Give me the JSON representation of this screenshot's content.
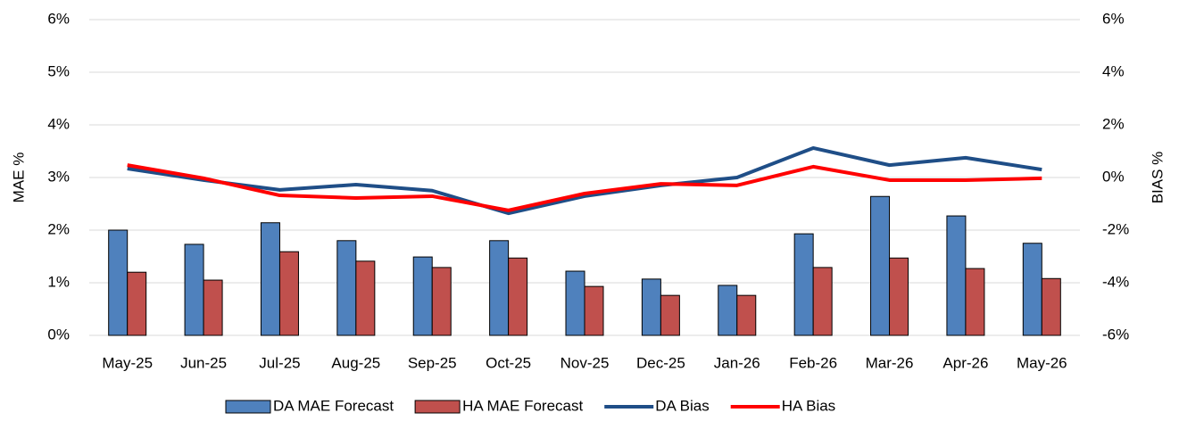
{
  "chart_data": {
    "type": "bar",
    "categories": [
      "May-25",
      "Jun-25",
      "Jul-25",
      "Aug-25",
      "Sep-25",
      "Oct-25",
      "Nov-25",
      "Dec-25",
      "Jan-26",
      "Feb-26",
      "Mar-26",
      "Apr-26",
      "May-26"
    ],
    "y_label": "MAE %",
    "y2_label": "BIAS %",
    "ylim": [
      0,
      6
    ],
    "yticks": [
      {
        "value": 0,
        "label": "0%"
      },
      {
        "value": 1,
        "label": "1%"
      },
      {
        "value": 2,
        "label": "2%"
      },
      {
        "value": 3,
        "label": "3%"
      },
      {
        "value": 4,
        "label": "4%"
      },
      {
        "value": 5,
        "label": "5%"
      },
      {
        "value": 6,
        "label": "6%"
      }
    ],
    "y2lim": [
      -6,
      6
    ],
    "y2ticks": [
      {
        "value": -6,
        "label": "-6%"
      },
      {
        "value": -4,
        "label": "-4%"
      },
      {
        "value": -2,
        "label": "-2%"
      },
      {
        "value": 0,
        "label": "0%"
      },
      {
        "value": 2,
        "label": "2%"
      },
      {
        "value": 4,
        "label": "4%"
      },
      {
        "value": 6,
        "label": "6%"
      }
    ],
    "grid": true,
    "legend": "bottom",
    "series": [
      {
        "name": "DA MAE Forecast",
        "type": "bar",
        "color": "#4f81bd",
        "values": [
          2.0,
          1.73,
          2.14,
          1.8,
          1.49,
          1.8,
          1.22,
          1.07,
          0.95,
          1.93,
          2.64,
          2.27,
          1.75
        ]
      },
      {
        "name": "HA MAE Forecast",
        "type": "bar",
        "color": "#c0504d",
        "values": [
          1.2,
          1.05,
          1.59,
          1.41,
          1.29,
          1.47,
          0.93,
          0.76,
          0.76,
          1.29,
          1.47,
          1.27,
          1.08
        ]
      },
      {
        "name": "DA Bias",
        "type": "line",
        "axis": "y2",
        "color": "#1f4e87",
        "values": [
          0.34,
          -0.1,
          -0.47,
          -0.27,
          -0.5,
          -1.36,
          -0.71,
          -0.3,
          0,
          1.12,
          0.47,
          0.75,
          0.3
        ]
      },
      {
        "name": "HA Bias",
        "type": "line",
        "axis": "y2",
        "color": "#ff0000",
        "values": [
          0.47,
          -0.03,
          -0.68,
          -0.78,
          -0.71,
          -1.25,
          -0.61,
          -0.24,
          -0.3,
          0.41,
          -0.1,
          -0.1,
          -0.03
        ]
      }
    ]
  }
}
